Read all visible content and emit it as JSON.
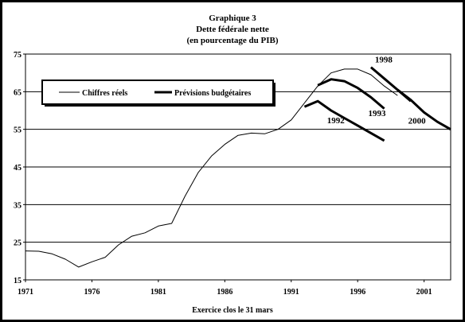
{
  "chart_data": {
    "type": "line",
    "title": "Graphique 3",
    "subtitle": [
      "Dette fédérale nette",
      "(en pourcentage du PIB)"
    ],
    "xlabel": "Exercice clos le 31 mars",
    "ylabel": "",
    "xlim": [
      1971,
      2003
    ],
    "ylim": [
      15,
      75
    ],
    "x_ticks": [
      "1971",
      "1976",
      "1981",
      "1986",
      "1991",
      "1996",
      "2001"
    ],
    "y_ticks": [
      "15",
      "25",
      "35",
      "45",
      "55",
      "65",
      "75"
    ],
    "grid": "horizontal",
    "legend": {
      "placement": "top-left",
      "items": [
        {
          "label": "Chiffres réels",
          "style": "thin"
        },
        {
          "label": "Prévisions budgétaires",
          "style": "thick"
        }
      ]
    },
    "series": [
      {
        "name": "Chiffres réels",
        "style": "thin",
        "x": [
          1971,
          1972,
          1973,
          1974,
          1975,
          1976,
          1977,
          1978,
          1979,
          1980,
          1981,
          1982,
          1983,
          1984,
          1985,
          1986,
          1987,
          1988,
          1989,
          1990,
          1991,
          1992,
          1993,
          1994,
          1995,
          1996,
          1997,
          1998,
          1999
        ],
        "values": [
          22.7,
          22.6,
          21.9,
          20.5,
          18.4,
          19.8,
          21.0,
          24.3,
          26.6,
          27.5,
          29.3,
          30.0,
          37.2,
          43.5,
          47.9,
          51.0,
          53.4,
          54.0,
          53.8,
          55.0,
          57.5,
          62.0,
          66.5,
          70.0,
          71.0,
          71.0,
          69.5,
          66.5,
          64.0
        ]
      },
      {
        "name": "1992",
        "style": "thick",
        "x": [
          1992,
          1993,
          1994,
          1995,
          1996,
          1997,
          1998
        ],
        "values": [
          61.0,
          62.5,
          60.0,
          58.0,
          56.0,
          54.0,
          52.0
        ]
      },
      {
        "name": "1993",
        "style": "thick",
        "x": [
          1993,
          1994,
          1995,
          1996,
          1997,
          1998
        ],
        "values": [
          66.7,
          68.3,
          67.8,
          66.0,
          63.5,
          60.5
        ]
      },
      {
        "name": "1998",
        "style": "thick",
        "x": [
          1997,
          1998,
          1999,
          2000
        ],
        "values": [
          71.5,
          68.5,
          65.5,
          62.5
        ]
      },
      {
        "name": "2000",
        "style": "thick",
        "x": [
          1999,
          2000,
          2001,
          2002,
          2003
        ],
        "values": [
          65.5,
          62.8,
          59.5,
          57.0,
          55.0
        ]
      }
    ],
    "annotations": [
      "1998",
      "1993",
      "1992",
      "2000"
    ]
  }
}
